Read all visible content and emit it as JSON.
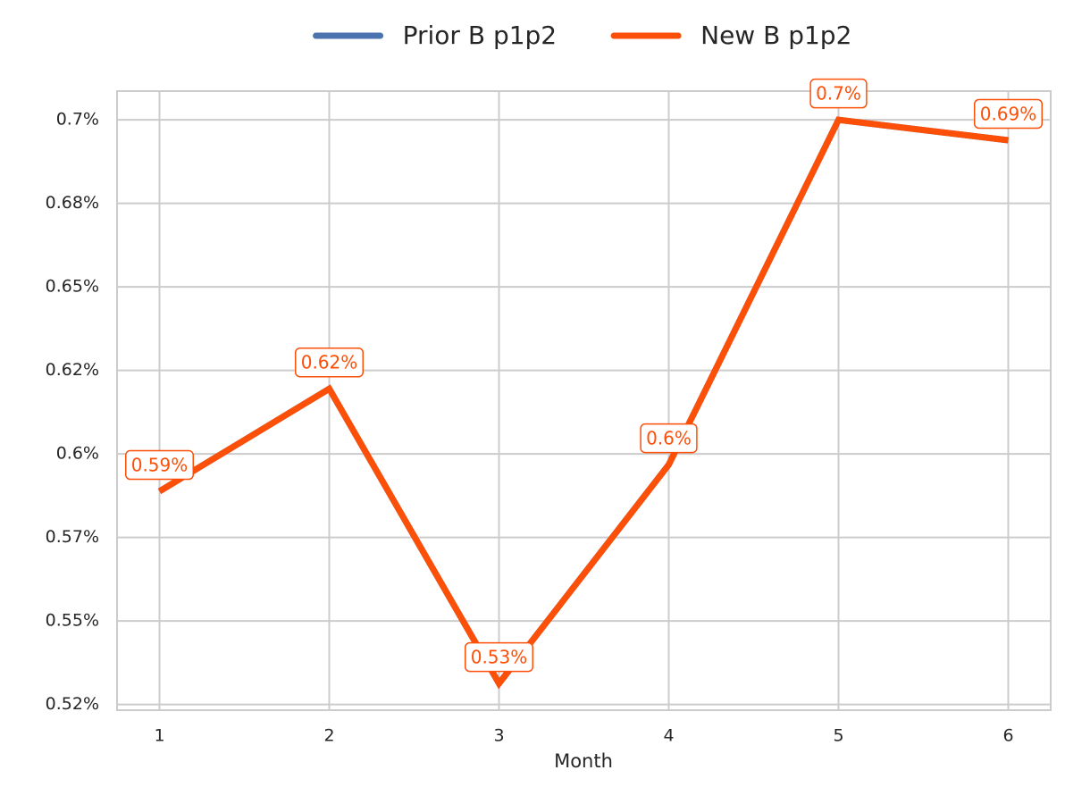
{
  "chart_data": {
    "type": "line",
    "x": [
      1,
      2,
      3,
      4,
      5,
      6
    ],
    "x_label": "Month",
    "series": [
      {
        "name": "Prior B p1p2",
        "color": "#4c72b0",
        "values": [
          0.5888,
          0.6195,
          0.5313,
          0.5968,
          0.7,
          0.6939
        ]
      },
      {
        "name": "New B p1p2",
        "color": "#fc4f08",
        "values": [
          0.5888,
          0.6195,
          0.5313,
          0.5968,
          0.7,
          0.6939
        ],
        "value_labels": [
          "0.59%",
          "0.62%",
          "0.53%",
          "0.6%",
          "0.7%",
          "0.69%"
        ]
      }
    ],
    "xlim": [
      0.75,
      6.25
    ],
    "xticks": [
      1,
      2,
      3,
      4,
      5,
      6
    ],
    "ylim": [
      0.5233,
      0.7086
    ],
    "yticks": [
      {
        "value": 0.525,
        "label": "0.52%"
      },
      {
        "value": 0.55,
        "label": "0.55%"
      },
      {
        "value": 0.575,
        "label": "0.57%"
      },
      {
        "value": 0.6,
        "label": "0.6%"
      },
      {
        "value": 0.625,
        "label": "0.62%"
      },
      {
        "value": 0.65,
        "label": "0.65%"
      },
      {
        "value": 0.675,
        "label": "0.68%"
      },
      {
        "value": 0.7,
        "label": "0.7%"
      }
    ],
    "grid": true,
    "legend": "top"
  }
}
